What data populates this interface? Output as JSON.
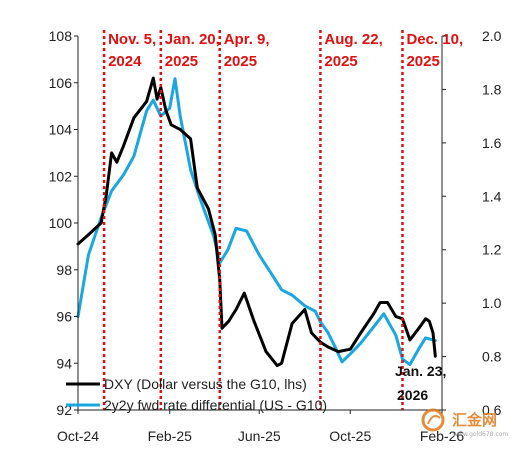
{
  "chart_data": {
    "type": "line",
    "title": "",
    "xlabel": "",
    "ylabel_left": "",
    "ylabel_right": "",
    "x_ticks": [
      "Oct-24",
      "Feb-25",
      "Jun-25",
      "Oct-25",
      "Feb-26"
    ],
    "x_tick_dates": [
      "2024-10-01",
      "2025-02-01",
      "2025-06-01",
      "2025-10-01",
      "2026-02-01"
    ],
    "x_range": [
      "2024-10-01",
      "2026-02-01"
    ],
    "y_left_ticks": [
      "92",
      "94",
      "96",
      "98",
      "100",
      "102",
      "104",
      "106",
      "108"
    ],
    "y_left_range": [
      92,
      108
    ],
    "y_right_ticks": [
      "0.6",
      "0.8",
      "1.0",
      "1.2",
      "1.4",
      "1.6",
      "1.8",
      "2.0"
    ],
    "y_right_range": [
      0.6,
      2.0
    ],
    "grid": false,
    "legend_position": "bottom-left",
    "series": [
      {
        "name": "DXY (Dollar versus the G10, lhs)",
        "axis": "left",
        "color": "#000000",
        "points": [
          [
            "2024-10-01",
            99.1
          ],
          [
            "2024-10-15",
            99.5
          ],
          [
            "2024-11-01",
            100.0
          ],
          [
            "2024-11-08",
            101.2
          ],
          [
            "2024-11-15",
            103.0
          ],
          [
            "2024-11-22",
            102.6
          ],
          [
            "2024-12-01",
            103.3
          ],
          [
            "2024-12-15",
            104.5
          ],
          [
            "2025-01-01",
            105.2
          ],
          [
            "2025-01-10",
            106.2
          ],
          [
            "2025-01-15",
            105.3
          ],
          [
            "2025-01-20",
            105.8
          ],
          [
            "2025-01-27",
            104.8
          ],
          [
            "2025-02-03",
            104.2
          ],
          [
            "2025-02-15",
            104.0
          ],
          [
            "2025-03-01",
            103.6
          ],
          [
            "2025-03-10",
            101.5
          ],
          [
            "2025-03-25",
            100.6
          ],
          [
            "2025-04-03",
            99.5
          ],
          [
            "2025-04-09",
            97.6
          ],
          [
            "2025-04-12",
            95.5
          ],
          [
            "2025-04-21",
            95.8
          ],
          [
            "2025-05-01",
            96.3
          ],
          [
            "2025-05-12",
            97.0
          ],
          [
            "2025-05-25",
            95.8
          ],
          [
            "2025-06-10",
            94.5
          ],
          [
            "2025-06-25",
            93.9
          ],
          [
            "2025-07-01",
            94.0
          ],
          [
            "2025-07-15",
            95.7
          ],
          [
            "2025-08-01",
            96.3
          ],
          [
            "2025-08-10",
            95.3
          ],
          [
            "2025-08-22",
            94.9
          ],
          [
            "2025-09-01",
            94.7
          ],
          [
            "2025-09-15",
            94.5
          ],
          [
            "2025-10-01",
            94.6
          ],
          [
            "2025-10-15",
            95.3
          ],
          [
            "2025-11-01",
            96.1
          ],
          [
            "2025-11-10",
            96.6
          ],
          [
            "2025-11-20",
            96.6
          ],
          [
            "2025-12-01",
            96.0
          ],
          [
            "2025-12-10",
            95.9
          ],
          [
            "2025-12-20",
            95.0
          ],
          [
            "2026-01-01",
            95.5
          ],
          [
            "2026-01-10",
            95.9
          ],
          [
            "2026-01-15",
            95.8
          ],
          [
            "2026-01-20",
            95.3
          ],
          [
            "2026-01-23",
            94.3
          ]
        ]
      },
      {
        "name": "2y2y fwd rate differential (US - G10)",
        "axis": "right",
        "color": "#1aa7e0",
        "points": [
          [
            "2024-10-01",
            0.95
          ],
          [
            "2024-10-15",
            1.18
          ],
          [
            "2024-11-01",
            1.32
          ],
          [
            "2024-11-15",
            1.42
          ],
          [
            "2024-12-01",
            1.48
          ],
          [
            "2024-12-15",
            1.55
          ],
          [
            "2025-01-01",
            1.72
          ],
          [
            "2025-01-10",
            1.76
          ],
          [
            "2025-01-20",
            1.7
          ],
          [
            "2025-02-01",
            1.73
          ],
          [
            "2025-02-08",
            1.84
          ],
          [
            "2025-02-15",
            1.7
          ],
          [
            "2025-03-01",
            1.5
          ],
          [
            "2025-03-15",
            1.38
          ],
          [
            "2025-04-01",
            1.25
          ],
          [
            "2025-04-09",
            1.15
          ],
          [
            "2025-04-20",
            1.2
          ],
          [
            "2025-05-01",
            1.28
          ],
          [
            "2025-05-15",
            1.27
          ],
          [
            "2025-06-01",
            1.18
          ],
          [
            "2025-06-15",
            1.12
          ],
          [
            "2025-07-01",
            1.05
          ],
          [
            "2025-07-15",
            1.03
          ],
          [
            "2025-08-01",
            0.99
          ],
          [
            "2025-08-15",
            0.97
          ],
          [
            "2025-08-22",
            0.93
          ],
          [
            "2025-09-01",
            0.89
          ],
          [
            "2025-09-10",
            0.84
          ],
          [
            "2025-09-20",
            0.78
          ],
          [
            "2025-10-01",
            0.81
          ],
          [
            "2025-10-15",
            0.85
          ],
          [
            "2025-11-01",
            0.91
          ],
          [
            "2025-11-15",
            0.96
          ],
          [
            "2025-12-01",
            0.88
          ],
          [
            "2025-12-10",
            0.79
          ],
          [
            "2025-12-20",
            0.77
          ],
          [
            "2026-01-01",
            0.83
          ],
          [
            "2026-01-10",
            0.87
          ],
          [
            "2026-01-23",
            0.86
          ]
        ]
      }
    ],
    "events": [
      {
        "date": "2024-11-05",
        "line1": "Nov. 5,",
        "line2": "2024"
      },
      {
        "date": "2025-01-20",
        "line1": "Jan. 20,",
        "line2": "2025"
      },
      {
        "date": "2025-04-09",
        "line1": "Apr. 9,",
        "line2": "2025"
      },
      {
        "date": "2025-08-22",
        "line1": "Aug. 22,",
        "line2": "2025"
      },
      {
        "date": "2025-12-10",
        "line1": "Dec. 10,",
        "line2": "2025"
      }
    ],
    "end_annotation": {
      "line1": "Jan. 23,",
      "line2": "2026"
    },
    "event_line_color": "#e01010"
  },
  "watermark": {
    "text": "汇金网",
    "sub": "www.gold678.com",
    "color": "#e07a1a"
  }
}
